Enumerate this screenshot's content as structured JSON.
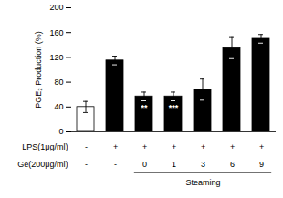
{
  "chart_data": {
    "type": "bar",
    "categories": [
      null,
      null,
      null,
      null,
      null,
      null,
      null
    ],
    "values": [
      40,
      115,
      57,
      57,
      68,
      135,
      150
    ],
    "errors": [
      9,
      7,
      7,
      7,
      17,
      17,
      7
    ],
    "colors": [
      "white",
      "black",
      "black",
      "black",
      "black",
      "black",
      "black"
    ],
    "ylabel": "PGE₂ Production (%)",
    "ylim": [
      0,
      200
    ],
    "yticks": [
      0,
      40,
      80,
      120,
      160,
      200
    ],
    "grid": false,
    "tick_labels": "y",
    "annotations": [
      null,
      null,
      "**",
      "***",
      null,
      null,
      null
    ],
    "table": [
      {
        "label": "LPS(1μg/ml)",
        "cells": [
          "-",
          "+",
          "+",
          "+",
          "+",
          "+",
          "+"
        ]
      },
      {
        "label": "Ge(200μg/ml)",
        "cells": [
          "-",
          "-",
          "0",
          "1",
          "3",
          "6",
          "9"
        ]
      }
    ],
    "group": {
      "label": "Steaming",
      "from": 2,
      "to": 6
    }
  }
}
